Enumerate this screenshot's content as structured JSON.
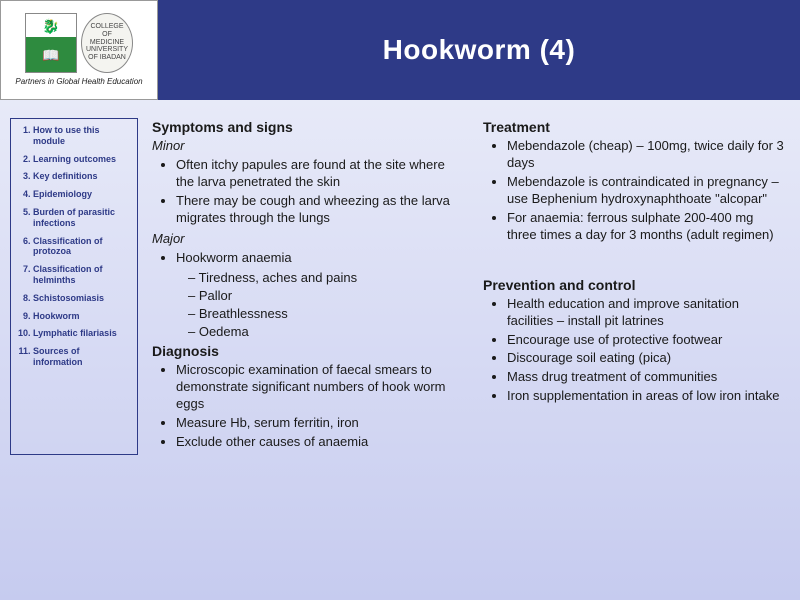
{
  "header": {
    "partners_caption": "Partners in Global Health Education",
    "seal_text": "COLLEGE OF MEDICINE UNIVERSITY OF IBADAN",
    "title": "Hookworm (4)"
  },
  "nav": [
    "How to use this module",
    "Learning outcomes",
    "Key definitions",
    "Epidemiology",
    "Burden of parasitic infections",
    "Classification of protozoa",
    "Classification of helminths",
    "Schistosomiasis",
    "Hookworm",
    "Lymphatic filariasis",
    "Sources of information"
  ],
  "left": {
    "symptoms_head": "Symptoms and signs",
    "minor_label": "Minor",
    "minor_bullets": [
      "Often itchy papules are found at the site where the larva penetrated the skin",
      "There may be cough and wheezing  as the larva migrates through the lungs"
    ],
    "major_label": "Major",
    "major_bullets": [
      "Hookworm anaemia"
    ],
    "anaemia_sub": [
      "Tiredness, aches and pains",
      "Pallor",
      "Breathlessness",
      "Oedema"
    ],
    "diagnosis_head": "Diagnosis",
    "diagnosis_bullets": [
      "Microscopic examination of faecal smears to demonstrate significant numbers of hook worm eggs",
      "Measure Hb, serum ferritin, iron",
      "Exclude other causes of anaemia"
    ]
  },
  "right": {
    "treatment_head": "Treatment",
    "treatment_bullets": [
      "Mebendazole (cheap) – 100mg, twice daily for 3 days",
      "Mebendazole is contraindicated in pregnancy – use Bephenium hydroxynaphthoate \"alcopar\"",
      "For anaemia: ferrous sulphate 200-400 mg three times a day for 3 months (adult regimen)"
    ],
    "prevention_head": "Prevention and control",
    "prevention_bullets": [
      "Health education and improve sanitation facilities – install pit latrines",
      "Encourage use of protective footwear",
      "Discourage soil eating (pica)",
      "Mass drug treatment of communities",
      "Iron supplementation in areas of low iron intake"
    ]
  }
}
